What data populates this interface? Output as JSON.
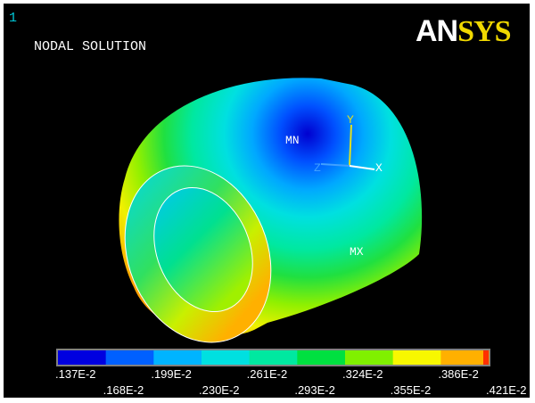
{
  "window_number": "1",
  "title": "NODAL SOLUTION",
  "logo": {
    "part1": "AN",
    "part2": "SYS"
  },
  "model_labels": {
    "min": "MN",
    "max": "MX"
  },
  "triad": {
    "x": "X",
    "y": "Y",
    "z": "Z"
  },
  "legend": {
    "labels": [
      ".137E-2",
      ".168E-2",
      ".199E-2",
      ".230E-2",
      ".261E-2",
      ".293E-2",
      ".324E-2",
      ".355E-2",
      ".386E-2",
      ".421E-2"
    ]
  }
}
